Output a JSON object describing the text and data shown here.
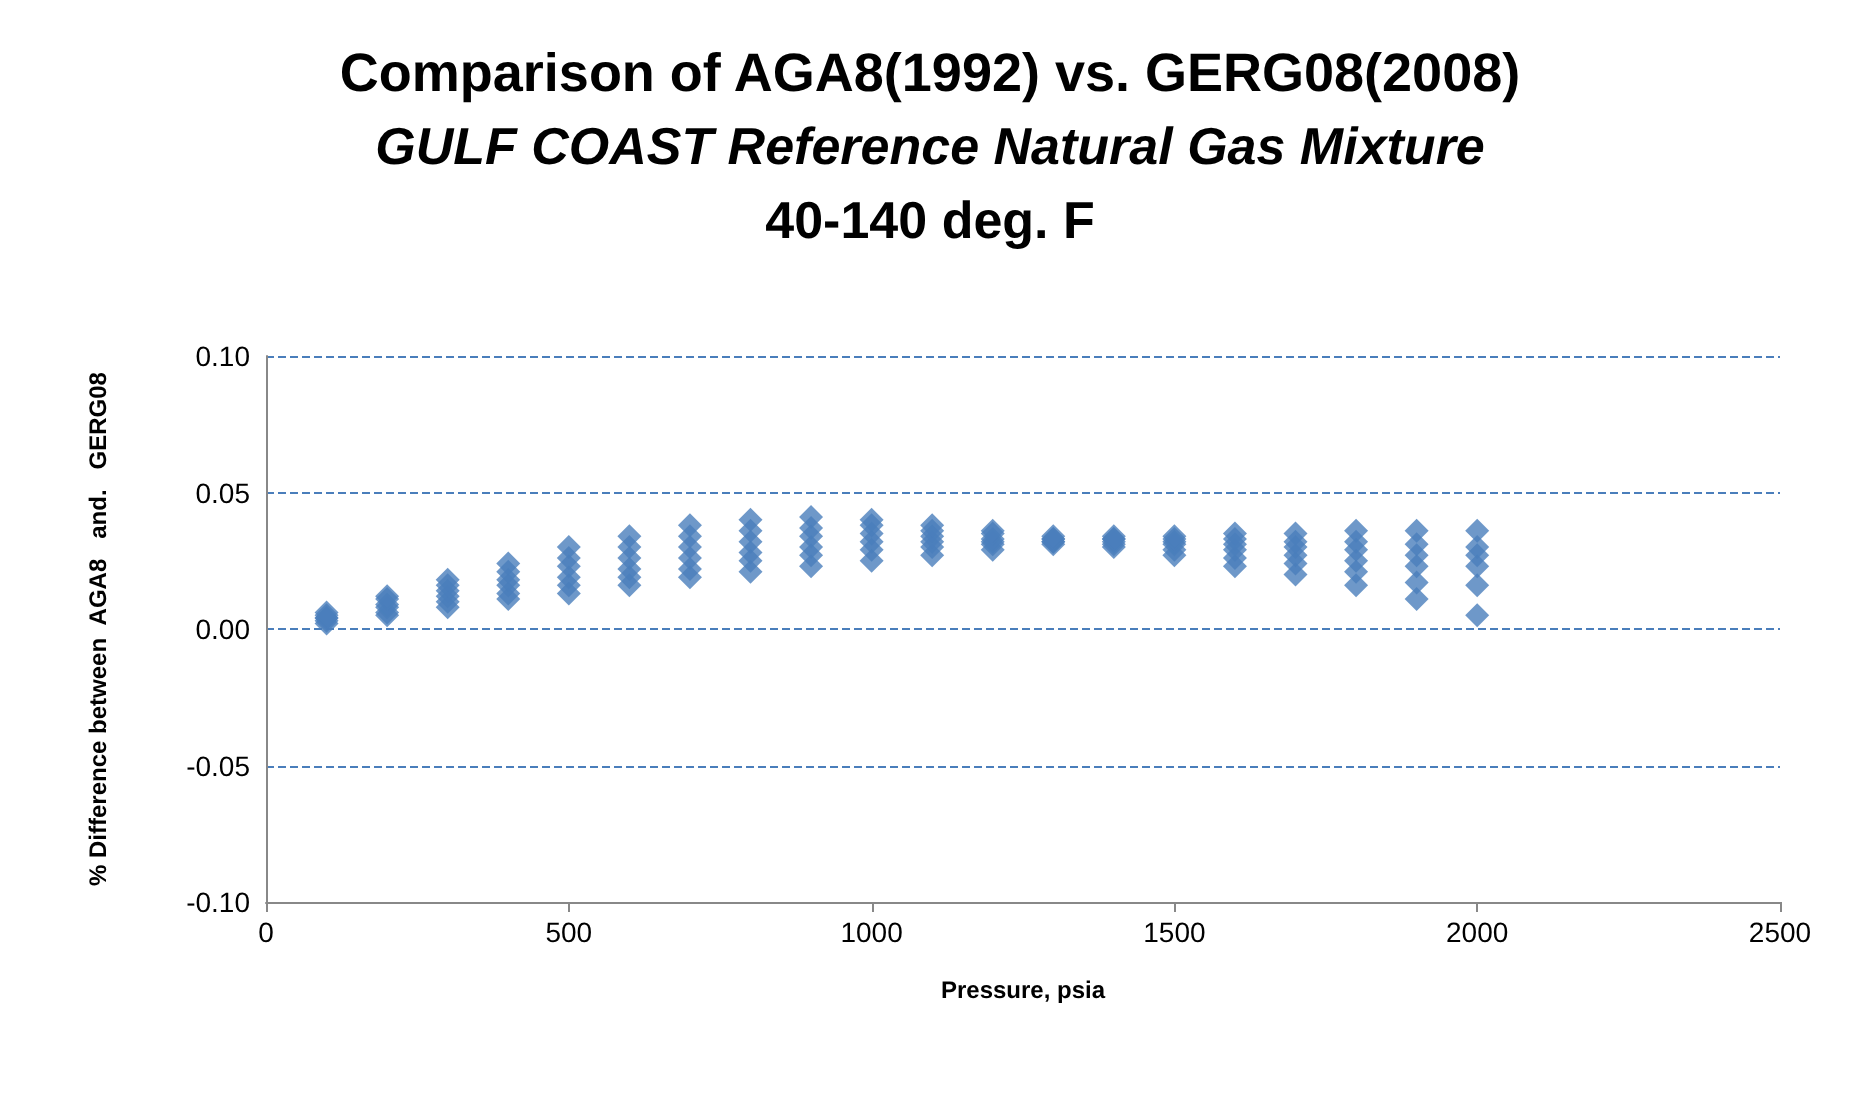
{
  "chart_data": {
    "type": "scatter",
    "title": "Comparison of AGA8(1992) vs. GERG08(2008)",
    "subtitle": "GULF COAST Reference Natural Gas Mixture",
    "annotations": [
      "40-140 deg. F"
    ],
    "xlabel": "Pressure, psia",
    "ylabel": "% Difference between  AGA8   and.   GERG08",
    "series": [
      {
        "color": "#4a7ebb",
        "x": [
          100,
          100,
          100,
          100,
          100,
          100,
          200,
          200,
          200,
          200,
          200,
          200,
          300,
          300,
          300,
          300,
          300,
          300,
          400,
          400,
          400,
          400,
          400,
          400,
          500,
          500,
          500,
          500,
          500,
          500,
          600,
          600,
          600,
          600,
          600,
          600,
          700,
          700,
          700,
          700,
          700,
          700,
          800,
          800,
          800,
          800,
          800,
          800,
          900,
          900,
          900,
          900,
          900,
          900,
          1000,
          1000,
          1000,
          1000,
          1000,
          1000,
          1100,
          1100,
          1100,
          1100,
          1100,
          1100,
          1200,
          1200,
          1200,
          1200,
          1200,
          1200,
          1300,
          1300,
          1300,
          1300,
          1300,
          1300,
          1400,
          1400,
          1400,
          1400,
          1400,
          1400,
          1500,
          1500,
          1500,
          1500,
          1500,
          1500,
          1600,
          1600,
          1600,
          1600,
          1600,
          1600,
          1700,
          1700,
          1700,
          1700,
          1700,
          1700,
          1800,
          1800,
          1800,
          1800,
          1800,
          1800,
          1900,
          1900,
          1900,
          1900,
          1900,
          1900,
          2000,
          2000,
          2000,
          2000,
          2000,
          2000
        ],
        "values": [
          0.002,
          0.003,
          0.004,
          0.004,
          0.005,
          0.006,
          0.005,
          0.006,
          0.008,
          0.009,
          0.011,
          0.012,
          0.008,
          0.01,
          0.012,
          0.014,
          0.016,
          0.018,
          0.011,
          0.013,
          0.016,
          0.018,
          0.021,
          0.024,
          0.013,
          0.016,
          0.019,
          0.023,
          0.026,
          0.03,
          0.016,
          0.019,
          0.022,
          0.026,
          0.03,
          0.034,
          0.019,
          0.022,
          0.026,
          0.03,
          0.034,
          0.038,
          0.021,
          0.025,
          0.028,
          0.032,
          0.036,
          0.04,
          0.023,
          0.027,
          0.03,
          0.034,
          0.037,
          0.041,
          0.025,
          0.029,
          0.032,
          0.035,
          0.038,
          0.04,
          0.027,
          0.03,
          0.032,
          0.034,
          0.036,
          0.038,
          0.029,
          0.031,
          0.032,
          0.033,
          0.035,
          0.036,
          0.031,
          0.032,
          0.032,
          0.033,
          0.033,
          0.034,
          0.03,
          0.031,
          0.032,
          0.033,
          0.033,
          0.034,
          0.027,
          0.029,
          0.031,
          0.032,
          0.033,
          0.034,
          0.023,
          0.026,
          0.029,
          0.031,
          0.033,
          0.035,
          0.02,
          0.024,
          0.027,
          0.03,
          0.032,
          0.035,
          0.016,
          0.021,
          0.025,
          0.029,
          0.032,
          0.036,
          0.011,
          0.017,
          0.023,
          0.027,
          0.031,
          0.036,
          0.005,
          0.016,
          0.023,
          0.027,
          0.03,
          0.036
        ]
      }
    ],
    "xlim": [
      0,
      2500
    ],
    "xticks": [
      0,
      500,
      1000,
      1500,
      2000,
      2500
    ],
    "ylim": [
      -0.1,
      0.1
    ],
    "yticks": [
      {
        "value": -0.1,
        "label": "-0.10"
      },
      {
        "value": -0.05,
        "label": "-0.05"
      },
      {
        "value": 0,
        "label": "0.00"
      },
      {
        "value": 0.05,
        "label": "0.05"
      },
      {
        "value": 0.1,
        "label": "0.10"
      }
    ],
    "grid": "y",
    "marker": "diamond"
  }
}
